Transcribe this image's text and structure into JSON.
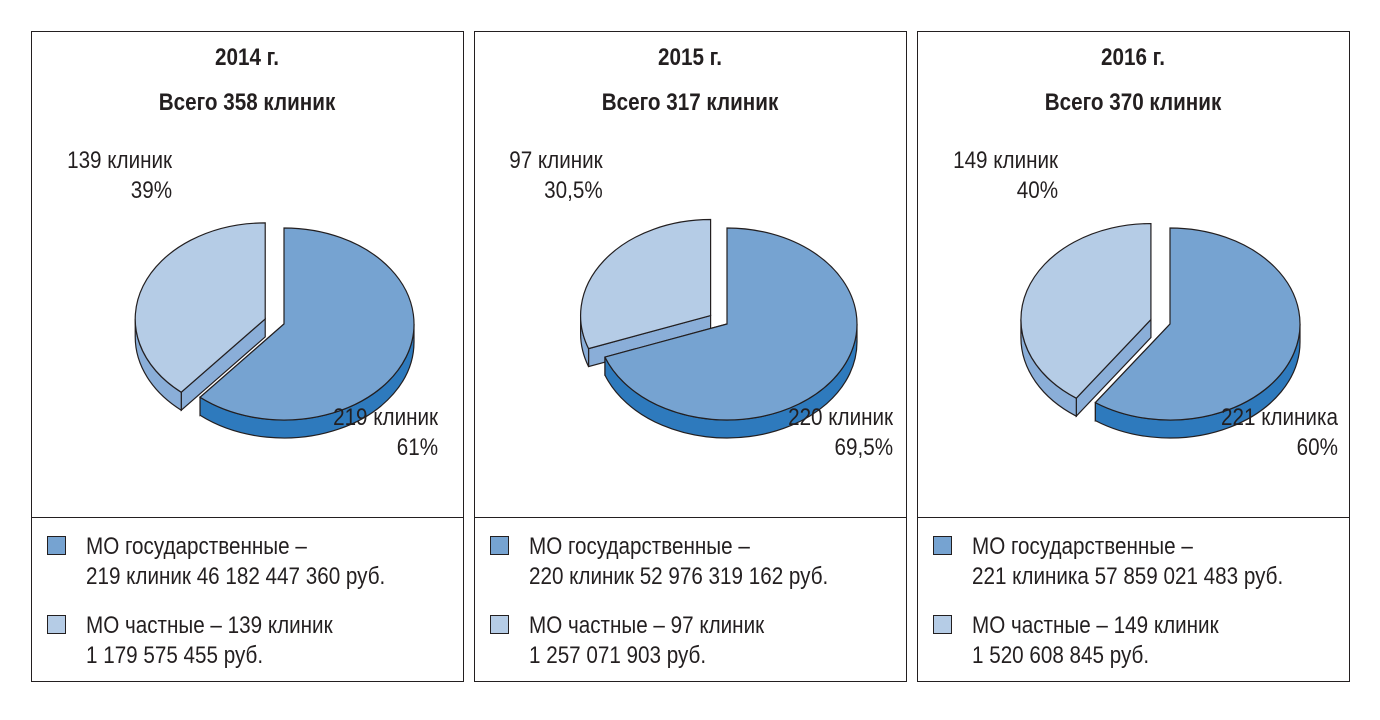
{
  "colors": {
    "public": "#76a3d1",
    "public_side": "#2e7abd",
    "private": "#b5cce6",
    "private_side": "#8aaed8",
    "edge": "#231f20"
  },
  "panels": [
    {
      "year": "2014 г.",
      "total": "Всего 358 клиник",
      "private_label": [
        "139 клиник",
        "39%"
      ],
      "public_label": [
        "219 клиник",
        "61%"
      ],
      "legend_public": [
        "МО государственные –",
        "219 клиник 46 182 447 360 руб."
      ],
      "legend_private": [
        "МО частные – 139 клиник",
        "1 179 575 455 руб."
      ]
    },
    {
      "year": "2015 г.",
      "total": "Всего 317 клиник",
      "private_label": [
        "97 клиник",
        "30,5%"
      ],
      "public_label": [
        "220 клиник",
        "69,5%"
      ],
      "legend_public": [
        "МО государственные –",
        "220 клиник 52 976 319 162 руб."
      ],
      "legend_private": [
        "МО частные – 97 клиник",
        "1 257 071 903 руб."
      ]
    },
    {
      "year": "2016 г.",
      "total": "Всего 370 клиник",
      "private_label": [
        "149 клиник",
        "40%"
      ],
      "public_label": [
        "221 клиника",
        "60%"
      ],
      "legend_public": [
        "МО государственные –",
        "221 клиника 57 859 021 483 руб."
      ],
      "legend_private": [
        "МО частные – 149 клиник",
        "1 520 608 845 руб."
      ]
    }
  ],
  "chart_data": [
    {
      "type": "pie",
      "title": "2014 г.",
      "subtitle": "Всего 358 клиник",
      "categories": [
        "МО государственные",
        "МО частные"
      ],
      "values": [
        219,
        139
      ],
      "percent": [
        61,
        39
      ],
      "amount_rub": [
        46182447360,
        1179575455
      ]
    },
    {
      "type": "pie",
      "title": "2015 г.",
      "subtitle": "Всего 317 клиник",
      "categories": [
        "МО государственные",
        "МО частные"
      ],
      "values": [
        220,
        97
      ],
      "percent": [
        69.5,
        30.5
      ],
      "amount_rub": [
        52976319162,
        1257071903
      ]
    },
    {
      "type": "pie",
      "title": "2016 г.",
      "subtitle": "Всего 370 клиник",
      "categories": [
        "МО государственные",
        "МО частные"
      ],
      "values": [
        221,
        149
      ],
      "percent": [
        60,
        40
      ],
      "amount_rub": [
        57859021483,
        1520608845
      ]
    }
  ]
}
